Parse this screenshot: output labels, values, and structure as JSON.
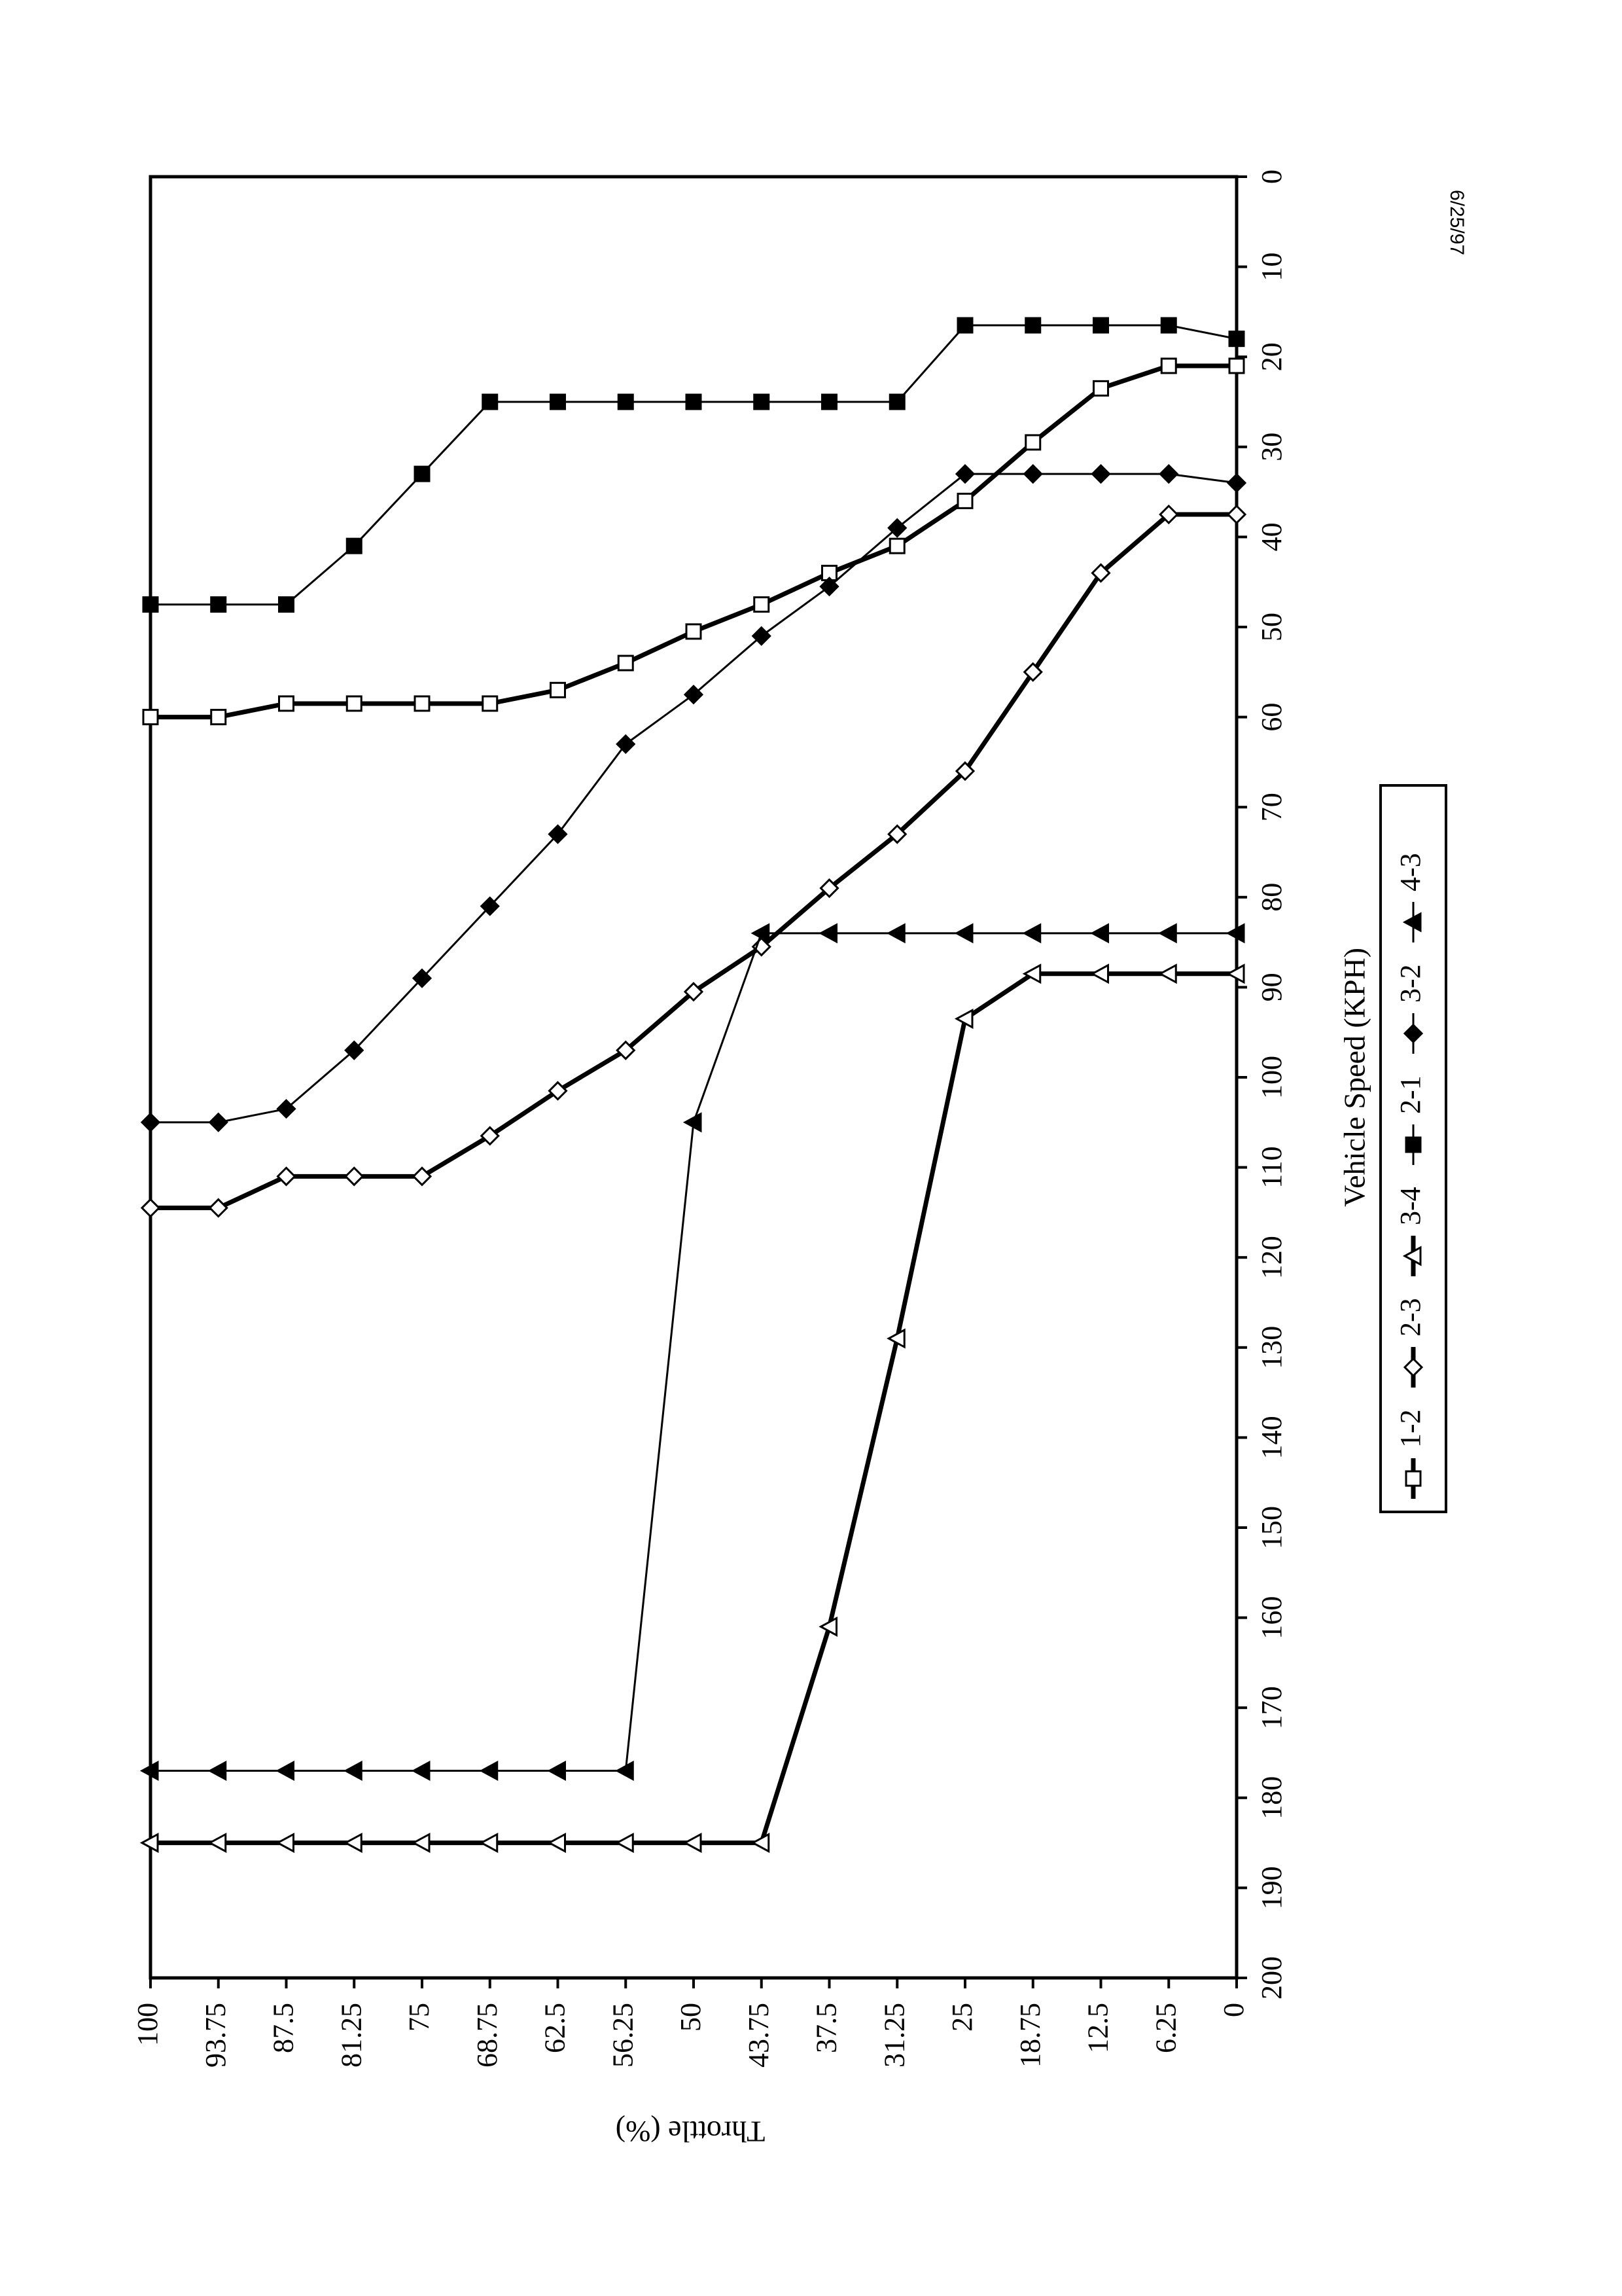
{
  "date_stamp": "6/25/97",
  "chart_data": {
    "type": "line",
    "xlabel": "Vehicle Speed (KPH)",
    "ylabel": "Throttle (%)",
    "x_axis": "Vehicle Speed (KPH)",
    "xlim": [
      0,
      200
    ],
    "ylim": [
      0,
      100
    ],
    "x_ticks": [
      "0",
      "10",
      "20",
      "30",
      "40",
      "50",
      "60",
      "70",
      "80",
      "90",
      "100",
      "110",
      "120",
      "130",
      "140",
      "150",
      "160",
      "170",
      "180",
      "190",
      "200"
    ],
    "y_ticks": [
      "100",
      "93.75",
      "87.5",
      "81.25",
      "75",
      "68.75",
      "62.5",
      "56.25",
      "50",
      "43.75",
      "37.5",
      "31.25",
      "25",
      "18.75",
      "12.5",
      "6.25",
      "0"
    ],
    "orientation": "rotated 90 degrees clockwise (speed axis runs top-to-bottom on the page, throttle axis runs right-to-left)",
    "grid": false,
    "legend_position": "right, below center",
    "throttle_values": [
      100,
      93.75,
      87.5,
      81.25,
      75,
      68.75,
      62.5,
      56.25,
      50,
      43.75,
      37.5,
      31.25,
      25,
      18.75,
      12.5,
      6.25,
      0
    ],
    "series": [
      {
        "name": "1-2",
        "marker": "open-square",
        "line": "thick",
        "speeds": [
          60,
          60,
          58.5,
          58.5,
          58.5,
          58.5,
          57,
          54,
          50.5,
          47.5,
          44,
          41,
          36,
          29.5,
          23.5,
          21,
          21
        ]
      },
      {
        "name": "2-3",
        "marker": "open-diamond",
        "line": "thick",
        "speeds": [
          114.5,
          114.5,
          111,
          111,
          111,
          106.5,
          101.5,
          97,
          90.5,
          85.5,
          79,
          73,
          66,
          55,
          44,
          37.5,
          37.5
        ]
      },
      {
        "name": "3-4",
        "marker": "open-triangle",
        "line": "thick",
        "speeds": [
          185,
          185,
          185,
          185,
          185,
          185,
          185,
          185,
          185,
          185,
          161,
          129,
          93.5,
          88.5,
          88.5,
          88.5,
          88.5
        ]
      },
      {
        "name": "2-1",
        "marker": "filled-square",
        "line": "thin",
        "speeds": [
          47.5,
          47.5,
          47.5,
          41,
          33,
          25,
          25,
          25,
          25,
          25,
          25,
          25,
          16.5,
          16.5,
          16.5,
          16.5,
          18
        ]
      },
      {
        "name": "3-2",
        "marker": "filled-diamond",
        "line": "thin",
        "speeds": [
          105,
          105,
          103.5,
          97,
          89,
          81,
          73,
          63,
          57.5,
          51,
          45.5,
          39,
          33,
          33,
          33,
          33,
          34
        ]
      },
      {
        "name": "4-3",
        "marker": "filled-triangle",
        "line": "thin",
        "speeds": [
          177,
          177,
          177,
          177,
          177,
          177,
          177,
          177,
          105,
          84,
          84,
          84,
          84,
          84,
          84,
          84,
          84
        ]
      }
    ]
  }
}
